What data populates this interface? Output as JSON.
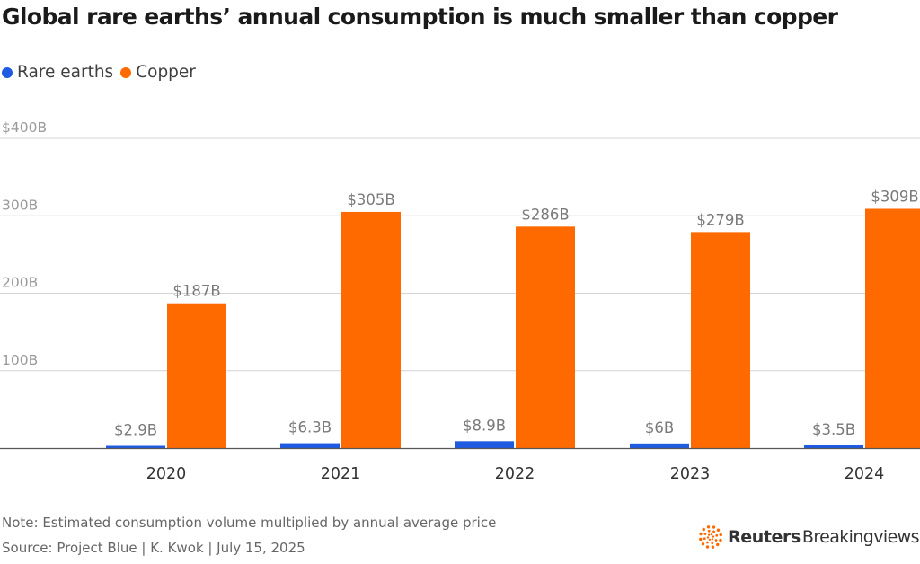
{
  "title": "Global rare earths’ annual consumption is much smaller than copper",
  "legend": [
    {
      "label": "Rare earths",
      "color": "#1f5be0"
    },
    {
      "label": "Copper",
      "color": "#ff6a00"
    }
  ],
  "chart_data": {
    "type": "bar",
    "title": "Global rare earths’ annual consumption is much smaller than copper",
    "categories": [
      "2020",
      "2021",
      "2022",
      "2023",
      "2024"
    ],
    "series": [
      {
        "name": "Rare earths",
        "color": "#1f5be0",
        "values": [
          2.9,
          6.3,
          8.9,
          6,
          3.5
        ],
        "labels": [
          "$2.9B",
          "$6.3B",
          "$8.9B",
          "$6B",
          "$3.5B"
        ]
      },
      {
        "name": "Copper",
        "color": "#ff6a00",
        "values": [
          187,
          305,
          286,
          279,
          309
        ],
        "labels": [
          "$187B",
          "$305B",
          "$286B",
          "$279B",
          "$309B"
        ]
      }
    ],
    "yticks": [
      100,
      200,
      300,
      400
    ],
    "ytick_labels": [
      "100B",
      "200B",
      "300B",
      "$400B"
    ],
    "ylim": [
      0,
      400
    ],
    "xlabel": "",
    "ylabel": "",
    "grid": true,
    "legend_position": "top-left"
  },
  "note": "Note: Estimated consumption volume multiplied by annual average price",
  "source": "Source: Project Blue | K. Kwok | July 15, 2025",
  "brand": {
    "bold": "Reuters",
    "light": "Breakingviews",
    "logo_color": "#ff6a00"
  }
}
